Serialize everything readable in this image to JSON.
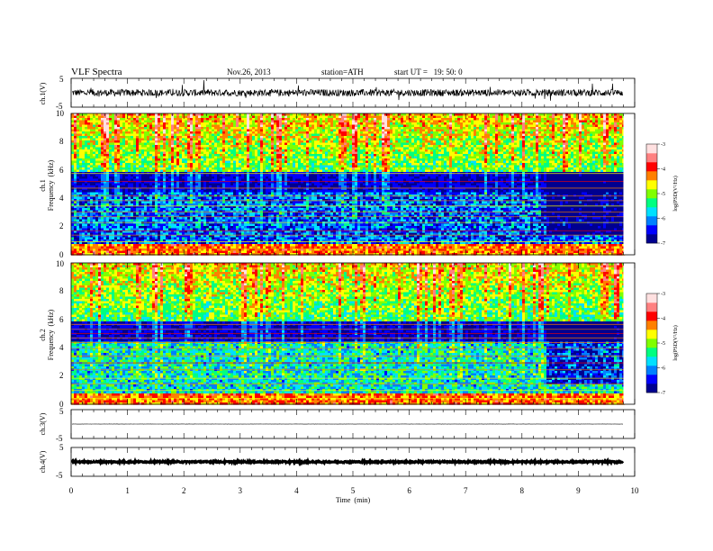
{
  "header": {
    "title": "VLF Spectra",
    "date": "Nov.26, 2013",
    "station": "station=ATH",
    "start": "start UT =   19: 50: 0"
  },
  "colorbar": {
    "label": "log(PSD(V²/Hz)",
    "ticks": [
      "-3",
      "-4",
      "-5",
      "-6",
      "-7"
    ],
    "colors": [
      "#000090",
      "#0000ff",
      "#0080ff",
      "#00e0ff",
      "#00ff80",
      "#80ff00",
      "#ffff00",
      "#ff8000",
      "#ff0000",
      "#ff8080",
      "#ffe0e0"
    ]
  },
  "chart_data": [
    {
      "type": "line",
      "name": "ch1-waveform",
      "ylabel": "ch.1(V)",
      "ylim": [
        -5,
        5
      ],
      "yticks": [
        "5",
        "-5"
      ],
      "x_range": [
        0,
        9.8
      ],
      "level": 0,
      "amplitude": 1.2
    },
    {
      "type": "heatmap",
      "name": "ch1-spectrogram",
      "ylabel_outer": "ch.1",
      "ylabel": "Frequency  (kHz)",
      "ylim": [
        0,
        10
      ],
      "yticks": [
        "0",
        "2",
        "4",
        "6",
        "8",
        "10"
      ],
      "x_range": [
        0,
        9.8
      ],
      "color_range": [
        -7,
        -3
      ],
      "description_values": {
        "high_freq_band_level": -5.2,
        "low_freq_level": -6.2,
        "quiet_after_min": 8.4
      }
    },
    {
      "type": "heatmap",
      "name": "ch2-spectrogram",
      "ylabel_outer": "ch.2",
      "ylabel": "Frequency  (kHz)",
      "ylim": [
        0,
        10
      ],
      "yticks": [
        "0",
        "2",
        "4",
        "6",
        "8",
        "10"
      ],
      "x_range": [
        0,
        9.8
      ],
      "color_range": [
        -7,
        -3
      ],
      "description_values": {
        "high_freq_band_level": -5.3,
        "low_freq_level": -5.6,
        "quiet_after_min": 8.4
      }
    },
    {
      "type": "line",
      "name": "ch3-waveform",
      "ylabel": "ch.3(V)",
      "ylim": [
        -5,
        5
      ],
      "yticks": [
        "5",
        "-5"
      ],
      "x_range": [
        0,
        9.8
      ],
      "level": 0,
      "amplitude": 0.05
    },
    {
      "type": "line",
      "name": "ch4-waveform",
      "ylabel": "ch.4(V)",
      "ylim": [
        -5,
        5
      ],
      "yticks": [
        "5",
        "-5"
      ],
      "x_range": [
        0,
        9.8
      ],
      "level": 0,
      "amplitude": 0.25
    }
  ],
  "xaxis": {
    "label": "Time  (min)",
    "ticks": [
      "0",
      "1",
      "2",
      "3",
      "4",
      "5",
      "6",
      "7",
      "8",
      "9",
      "10"
    ],
    "xlim": [
      0,
      10
    ]
  }
}
